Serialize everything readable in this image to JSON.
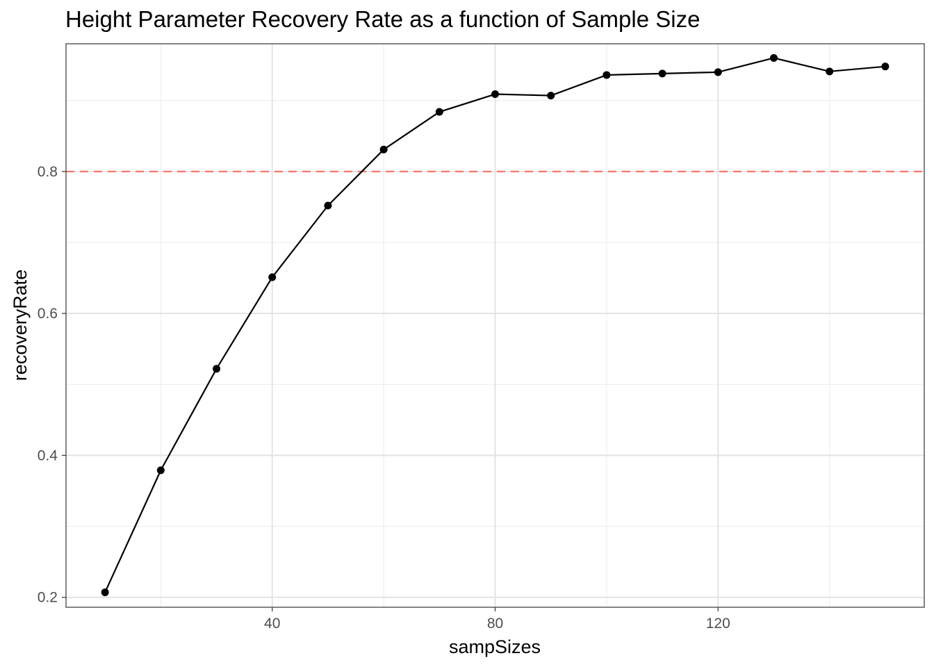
{
  "chart_data": {
    "type": "line",
    "title": "Height Parameter Recovery Rate as a function of Sample Size",
    "xlabel": "sampSizes",
    "ylabel": "recoveryRate",
    "x": [
      10,
      20,
      30,
      40,
      50,
      60,
      70,
      80,
      90,
      100,
      110,
      120,
      130,
      140,
      150
    ],
    "series": [
      {
        "values": [
          0.207,
          0.379,
          0.522,
          0.651,
          0.752,
          0.831,
          0.884,
          0.909,
          0.907,
          0.936,
          0.938,
          0.94,
          0.96,
          0.941,
          0.948
        ],
        "color": "#000000"
      }
    ],
    "xlim": [
      3,
      157
    ],
    "ylim": [
      0.186,
      0.98
    ],
    "xticks": [
      40,
      80,
      120
    ],
    "xtick_labels": [
      "40",
      "80",
      "120"
    ],
    "yticks": [
      0.2,
      0.4,
      0.6,
      0.8
    ],
    "ytick_labels": [
      "0.2",
      "0.4",
      "0.6",
      "0.8"
    ],
    "x_minor_gridlines": [
      20,
      60,
      100,
      140
    ],
    "y_minor_gridlines": [
      0.3,
      0.5,
      0.7,
      0.9
    ],
    "reference_line": {
      "orientation": "horizontal",
      "y": 0.8,
      "style": "dashed",
      "color": "#f8766d"
    },
    "grid": true,
    "theme": "bw",
    "legend": "none"
  }
}
